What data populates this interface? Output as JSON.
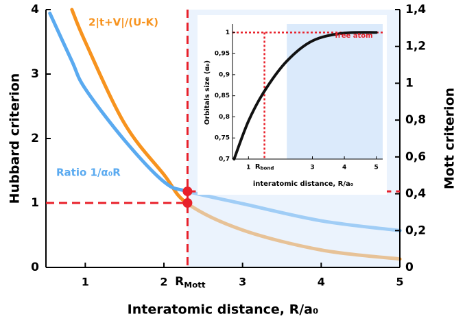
{
  "chart_data": [
    {
      "type": "line",
      "xlabel": "Interatomic distance, R/a₀",
      "ylabel": "Hubbard criterion",
      "y2label": "Mott criterion",
      "x": [
        0.55,
        0.83,
        1,
        1.5,
        2,
        2.3,
        3,
        4,
        5
      ],
      "series": [
        {
          "name": "2|t+V|/(U-K)",
          "color": "#f7931e",
          "values": [
            null,
            4,
            3.5,
            2.23,
            1.44,
            0.99,
            0.58,
            0.27,
            0.13
          ]
        },
        {
          "name": "Ratio 1/α₀R",
          "color": "#5aaaf0",
          "axis": "y2",
          "values": [
            1.38,
            1.12,
            0.97,
            0.69,
            0.465,
            0.413,
            0.346,
            0.253,
            0.2
          ]
        }
      ],
      "xlim": [
        0.5,
        5
      ],
      "xticks": [
        1,
        2,
        3,
        4,
        5
      ],
      "ylim": [
        0,
        4
      ],
      "yticks": [
        0,
        1,
        2,
        3,
        4
      ],
      "y2lim": [
        0,
        1.4
      ],
      "y2ticks": [
        0,
        {
          "value": 0.2,
          "label": "0,2"
        },
        {
          "value": 0.4,
          "label": "0,4"
        },
        {
          "value": 0.6,
          "label": "0,6"
        },
        {
          "value": 0.8,
          "label": "0,8"
        },
        1,
        {
          "value": 1.2,
          "label": "1,2"
        },
        {
          "value": 1.4,
          "label": "1,4"
        }
      ],
      "r_mott": {
        "value": 2.3,
        "label": "R",
        "subscript": "Mott"
      },
      "hubbard_threshold": 1,
      "mott_threshold": 0.413,
      "line_color": "#e8202a",
      "shade_color": "#dbeafb"
    },
    {
      "type": "line",
      "xlabel": "interatomic distance, R/a₀",
      "ylabel": "Orbitals size (α₀)",
      "x": [
        0.55,
        1,
        1.5,
        2.2,
        3,
        3.95,
        5
      ],
      "series": [
        {
          "name": "Orbitals size",
          "color": "#111111",
          "values": [
            0.7,
            0.79,
            0.861,
            0.932,
            0.98,
            0.998,
            1
          ]
        }
      ],
      "xlim": [
        0.5,
        5.2
      ],
      "xticks": [
        1,
        3,
        4,
        5
      ],
      "ylim": [
        0.7,
        1.02
      ],
      "yticks": [
        {
          "value": 0.7,
          "label": "0,7"
        },
        {
          "value": 0.75,
          "label": "0,75"
        },
        {
          "value": 0.8,
          "label": "0,8"
        },
        {
          "value": 0.85,
          "label": "0,85"
        },
        {
          "value": 0.9,
          "label": "0,9"
        },
        {
          "value": 0.95,
          "label": "0,95"
        },
        1
      ],
      "r_bond": {
        "value": 1.5,
        "label": "R",
        "subscript": "bond"
      },
      "free_atom": {
        "value": 1,
        "label": "free atom"
      },
      "shaded_from": 2.2
    }
  ]
}
